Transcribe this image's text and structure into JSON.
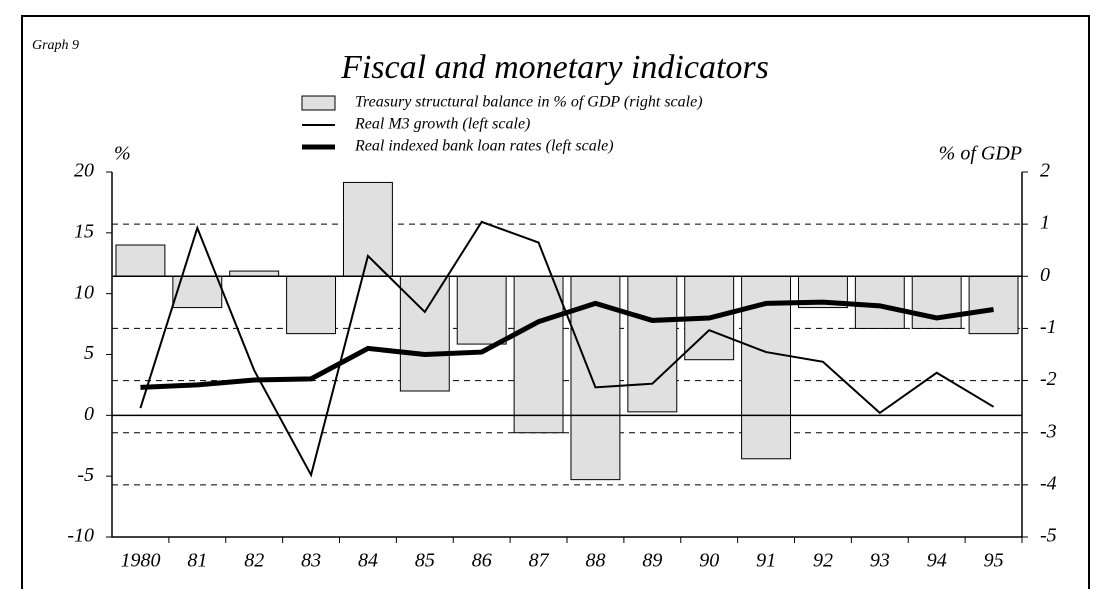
{
  "chart_data": {
    "type": "bar",
    "label": "Graph 9",
    "title": "Fiscal and monetary indicators",
    "ylabel": "%",
    "y2label": "% of GDP",
    "categories": [
      "1980",
      "81",
      "82",
      "83",
      "84",
      "85",
      "86",
      "87",
      "88",
      "89",
      "90",
      "91",
      "92",
      "93",
      "94",
      "95"
    ],
    "series": [
      {
        "name": "Treasury structural balance in % of GDP (right scale)",
        "type": "bar",
        "axis": "y2",
        "color": "#e0e0e0",
        "values": [
          0.6,
          -0.6,
          0.1,
          -1.1,
          1.8,
          -2.2,
          -1.3,
          -3.0,
          -3.9,
          -2.6,
          -1.6,
          -3.5,
          -0.6,
          -1.0,
          -1.0,
          -1.1
        ]
      },
      {
        "name": "Real M3 growth (left scale)",
        "type": "line",
        "color": "#000000",
        "line_width": 2,
        "values": [
          0.6,
          15.4,
          3.7,
          -4.9,
          13.1,
          8.5,
          15.9,
          14.2,
          2.3,
          2.6,
          7.0,
          5.2,
          4.4,
          0.2,
          3.5,
          0.7
        ]
      },
      {
        "name": "Real indexed bank loan rates (left scale)",
        "type": "line",
        "color": "#000000",
        "line_width": 5,
        "values": [
          2.3,
          2.5,
          2.9,
          3.0,
          5.5,
          5.0,
          5.2,
          7.7,
          9.2,
          7.8,
          8.0,
          9.2,
          9.3,
          9.0,
          8.0,
          8.7
        ]
      }
    ],
    "ylim": [
      -10,
      20
    ],
    "yticks": [
      -10,
      -5,
      0,
      5,
      10,
      15,
      20
    ],
    "y2lim": [
      -5,
      2
    ],
    "y2ticks": [
      -5,
      -4,
      -3,
      -2,
      -1,
      0,
      1,
      2
    ],
    "grid": true
  }
}
